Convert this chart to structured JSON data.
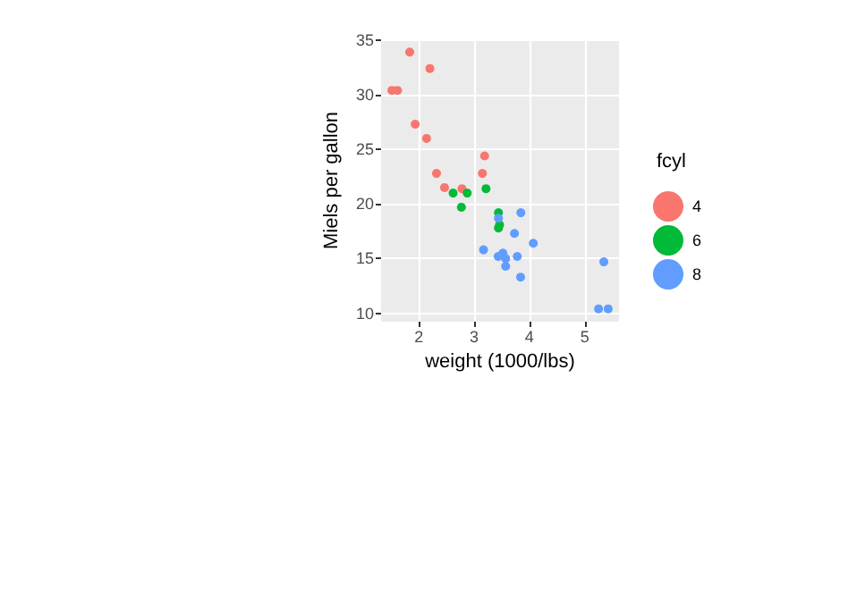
{
  "chart_data": {
    "type": "scatter",
    "xlabel": "weight (1000/lbs)",
    "ylabel": "Miels per gallon",
    "legend_title": "fcyl",
    "legend": "right",
    "grid": true,
    "marker": "circle",
    "xlim": [
      1.3175,
      5.6195
    ],
    "xticks": [
      2,
      3,
      4,
      5
    ],
    "ylim": [
      9.225,
      35.075
    ],
    "yticks": [
      10,
      15,
      20,
      25,
      30,
      35
    ],
    "series": [
      {
        "name": "4",
        "color": "#f8766d",
        "x": [
          2.32,
          3.19,
          3.15,
          2.2,
          1.615,
          1.835,
          2.465,
          1.935,
          2.14,
          1.513,
          2.78
        ],
        "values": [
          22.8,
          24.4,
          22.8,
          32.4,
          30.4,
          33.9,
          21.5,
          27.3,
          26,
          30.4,
          21.4
        ]
      },
      {
        "name": "6",
        "color": "#00ba38",
        "x": [
          2.62,
          2.875,
          3.215,
          3.46,
          3.44,
          3.44,
          2.77
        ],
        "values": [
          21,
          21,
          21.4,
          18.1,
          19.2,
          17.8,
          19.7
        ]
      },
      {
        "name": "8",
        "color": "#619cff",
        "x": [
          3.44,
          3.57,
          4.07,
          3.73,
          3.78,
          5.25,
          5.424,
          5.345,
          3.52,
          3.435,
          3.84,
          3.845,
          3.17,
          3.57
        ],
        "values": [
          18.7,
          14.3,
          16.4,
          17.3,
          15.2,
          10.4,
          10.4,
          14.7,
          15.5,
          15.2,
          13.3,
          19.2,
          15.8,
          15
        ]
      }
    ]
  }
}
